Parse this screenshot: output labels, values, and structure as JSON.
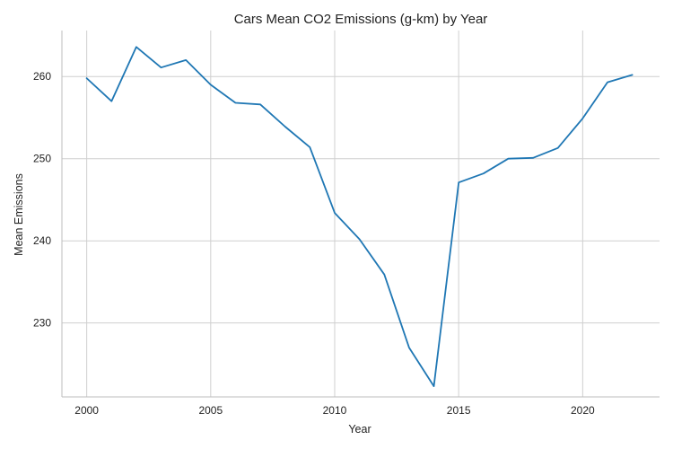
{
  "chart_data": {
    "type": "line",
    "title": "Cars Mean CO2 Emissions (g-km) by Year",
    "xlabel": "Year",
    "ylabel": "Mean Emissions",
    "xlim": [
      1999,
      2023.1
    ],
    "ylim": [
      221,
      265.6
    ],
    "xticks": [
      2000,
      2005,
      2010,
      2015,
      2020
    ],
    "yticks": [
      230,
      240,
      250,
      260
    ],
    "grid": true,
    "line_color": "#1f77b4",
    "grid_color": "#cfcfcf",
    "series": [
      {
        "x": [
          2000,
          2001,
          2002,
          2003,
          2004,
          2005,
          2006,
          2007,
          2008,
          2009,
          2010,
          2011,
          2012,
          2013,
          2014,
          2015,
          2016,
          2017,
          2018,
          2019,
          2020,
          2021,
          2022
        ],
        "values": [
          259.8,
          257.0,
          263.6,
          261.1,
          262.0,
          259.0,
          256.8,
          256.6,
          253.9,
          251.4,
          243.4,
          240.2,
          235.9,
          227.0,
          222.3,
          247.1,
          248.2,
          250.0,
          250.1,
          251.3,
          254.9,
          259.3,
          260.2
        ]
      }
    ]
  }
}
